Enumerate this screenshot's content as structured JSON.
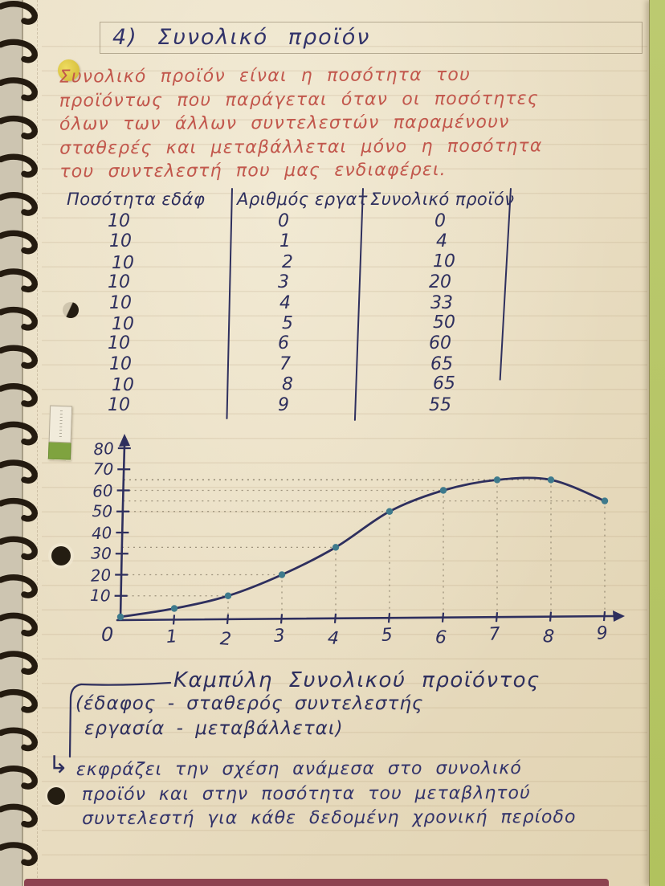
{
  "title": {
    "text": "4) Συνολικό προϊόν"
  },
  "definition": {
    "lines": [
      "Συνολικό προϊόν είναι η ποσότητα του",
      "προϊόντως που παράγεται όταν οι ποσότητες",
      "όλων των άλλων συντελεστών παραμένουν",
      "σταθερές και μεταβάλλεται μόνο η ποσότητα",
      "του συντελεστή που μας ενδιαφέρει."
    ]
  },
  "table": {
    "headers": [
      "Ποσότητα εδάφ",
      "Αριθμός εργατ",
      "Συνολικό προϊόν"
    ],
    "rows": [
      [
        "10",
        "0",
        "0"
      ],
      [
        "10",
        "1",
        "4"
      ],
      [
        "10",
        "2",
        "10"
      ],
      [
        "10",
        "3",
        "20"
      ],
      [
        "10",
        "4",
        "33"
      ],
      [
        "10",
        "5",
        "50"
      ],
      [
        "10",
        "6",
        "60"
      ],
      [
        "10",
        "7",
        "65"
      ],
      [
        "10",
        "8",
        "65"
      ],
      [
        "10",
        "9",
        "55"
      ]
    ]
  },
  "chart_data": {
    "type": "line",
    "title": "Καμπύλη Συνολικού προϊόντος",
    "xlabel": "",
    "ylabel": "",
    "x": [
      0,
      1,
      2,
      3,
      4,
      5,
      6,
      7,
      8,
      9
    ],
    "values": [
      0,
      4,
      10,
      20,
      33,
      50,
      60,
      65,
      65,
      55
    ],
    "x_ticks": [
      "0",
      "1",
      "2",
      "3",
      "4",
      "5",
      "6",
      "7",
      "8",
      "9"
    ],
    "y_ticks": [
      10,
      20,
      30,
      40,
      50,
      60,
      70,
      80
    ],
    "xlim": [
      0,
      9.6
    ],
    "ylim": [
      0,
      85
    ],
    "grid": "hand-drawn dotted guides from axes to data points",
    "legend": "none",
    "line_color": "#2e2f5e",
    "marker_color": "#3e7a8c"
  },
  "caption": {
    "title": "Καμπύλη Συνολικού προϊόντος",
    "note_line1": "(έδαφος - σταθερός συντελεστής",
    "note_line2": "εργασία - μεταβάλλεται)"
  },
  "footnote": {
    "arrow": "↳",
    "lines": [
      "εκφράζει την σχέση ανάμεσα στο συνολικό",
      "προϊόν και στην ποσότητα του μεταβλητού",
      "συντελεστή για κάθε δεδομένη χρονική περίοδο"
    ]
  },
  "colors": {
    "ink_blue": "#32336a",
    "ink_red": "#c2574c",
    "paper": "#e8dcc0",
    "cover_green": "#b5c566",
    "marker_teal": "#3e7a8c",
    "desk_strip_maroon": "#8d4350"
  }
}
